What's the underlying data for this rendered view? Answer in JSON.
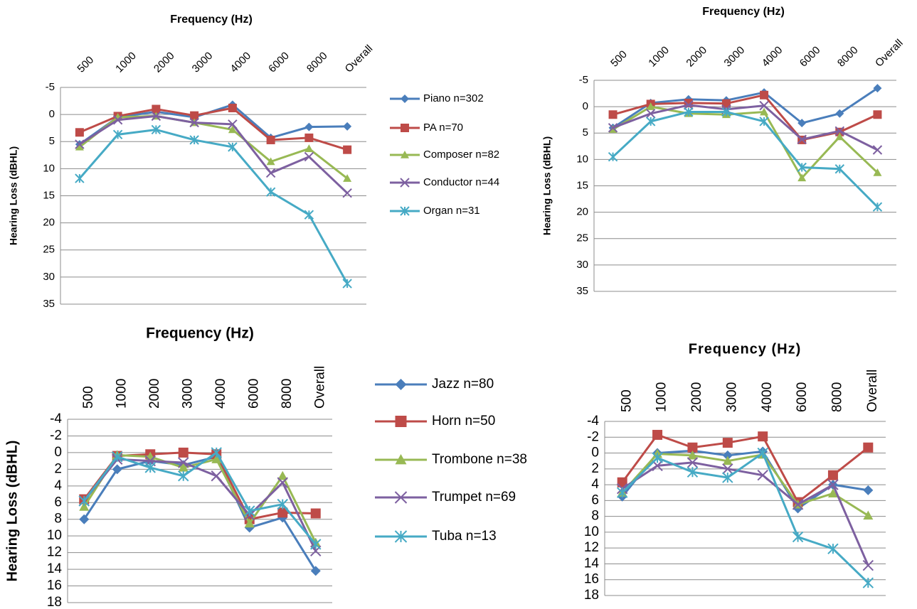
{
  "chart_data": [
    {
      "type": "line",
      "title": "Frequency (Hz)",
      "y_label": "Hearing Loss (dBHL)",
      "categories": [
        "500",
        "1000",
        "2000",
        "3000",
        "4000",
        "6000",
        "8000",
        "Overall"
      ],
      "ylim": [
        -5,
        35
      ],
      "yticks": [
        -5,
        0,
        5,
        10,
        15,
        20,
        25,
        30,
        35
      ],
      "y_inverted": true,
      "grid": true,
      "series": [
        {
          "name": "Piano n=302",
          "color": "#4a7ebb",
          "marker": "diamond",
          "values": [
            5.5,
            0.5,
            -0.5,
            0.5,
            -1.8,
            4.3,
            2.3,
            2.2
          ]
        },
        {
          "name": "PA n=70",
          "color": "#be4b48",
          "marker": "square",
          "values": [
            3.3,
            0.3,
            -1,
            0.2,
            -1.2,
            4.7,
            4.3,
            6.5
          ]
        },
        {
          "name": "Composer n=82",
          "color": "#98b954",
          "marker": "triangle",
          "values": [
            6,
            0.5,
            0.3,
            1.5,
            2.8,
            8.7,
            6.3,
            11.8
          ]
        },
        {
          "name": "Conductor n=44",
          "color": "#7d60a0",
          "marker": "x",
          "values": [
            5.5,
            1,
            0.3,
            1.5,
            1.8,
            10.8,
            7.8,
            14.5
          ]
        },
        {
          "name": "Organ n=31",
          "color": "#46aac5",
          "marker": "asterisk",
          "values": [
            11.8,
            3.7,
            2.8,
            4.7,
            6,
            14.3,
            18.5,
            31.2
          ]
        }
      ]
    },
    {
      "type": "line",
      "title": "Frequency (Hz)",
      "y_label": "Hearing Loss (dBHL)",
      "categories": [
        "500",
        "1000",
        "2000",
        "3000",
        "4000",
        "6000",
        "8000",
        "Overall"
      ],
      "ylim": [
        -5,
        35
      ],
      "yticks": [
        -5,
        0,
        5,
        10,
        15,
        20,
        25,
        30,
        35
      ],
      "y_inverted": true,
      "grid": true,
      "series": [
        {
          "color": "#4a7ebb",
          "marker": "diamond",
          "values": [
            4,
            -0.7,
            -1.4,
            -1.2,
            -2.7,
            3.1,
            1.3,
            -3.5
          ]
        },
        {
          "color": "#be4b48",
          "marker": "square",
          "values": [
            1.5,
            -0.5,
            -0.7,
            -0.6,
            -2.2,
            6.3,
            4.8,
            1.5
          ]
        },
        {
          "color": "#98b954",
          "marker": "triangle",
          "values": [
            4.3,
            0,
            1.3,
            1.5,
            1,
            13.5,
            5.7,
            12.5
          ]
        },
        {
          "color": "#7d60a0",
          "marker": "x",
          "values": [
            4,
            1.3,
            -0.3,
            0.5,
            -0.2,
            6.2,
            4.6,
            8.2
          ]
        },
        {
          "color": "#46aac5",
          "marker": "asterisk",
          "values": [
            9.5,
            2.8,
            1,
            1,
            2.8,
            11.5,
            11.8,
            19
          ]
        }
      ]
    },
    {
      "type": "line",
      "title": "Frequency (Hz)",
      "y_label": "Hearing Loss (dBHL)",
      "categories": [
        "500",
        "1000",
        "2000",
        "3000",
        "4000",
        "6000",
        "8000",
        "Overall"
      ],
      "ylim": [
        -4,
        18
      ],
      "yticks": [
        -4,
        -2,
        0,
        2,
        4,
        6,
        8,
        10,
        12,
        14,
        16,
        18
      ],
      "y_inverted": true,
      "grid": true,
      "series": [
        {
          "name": "Jazz n=80",
          "color": "#4a7ebb",
          "marker": "diamond",
          "values": [
            8,
            2,
            1,
            1.5,
            0.5,
            9,
            7.8,
            14.2
          ]
        },
        {
          "name": "Horn n=50",
          "color": "#be4b48",
          "marker": "square",
          "values": [
            5.6,
            0.4,
            0.2,
            0,
            0.2,
            8,
            7.2,
            7.3
          ]
        },
        {
          "name": "Trombone n=38",
          "color": "#98b954",
          "marker": "triangle",
          "values": [
            6.5,
            0.3,
            0.5,
            1.8,
            0.8,
            8.5,
            2.8,
            10.8
          ]
        },
        {
          "name": "Trumpet n=69",
          "color": "#7d60a0",
          "marker": "x",
          "values": [
            5.8,
            0.8,
            1,
            1.2,
            2.8,
            7.5,
            3.6,
            11.8
          ]
        },
        {
          "name": "Tuba n=13",
          "color": "#46aac5",
          "marker": "asterisk",
          "values": [
            5.8,
            0.5,
            1.8,
            2.8,
            0,
            7,
            6.2,
            11
          ]
        }
      ]
    },
    {
      "type": "line",
      "title": "Frequency (Hz)",
      "categories": [
        "500",
        "1000",
        "2000",
        "3000",
        "4000",
        "6000",
        "8000",
        "Overall"
      ],
      "ylim": [
        -4,
        18
      ],
      "yticks": [
        -4,
        -2,
        0,
        2,
        4,
        6,
        8,
        10,
        12,
        14,
        16,
        18
      ],
      "y_inverted": true,
      "grid": true,
      "series": [
        {
          "color": "#4a7ebb",
          "marker": "diamond",
          "values": [
            5.5,
            0,
            -0.3,
            0.3,
            -0.2,
            7,
            4,
            4.7
          ]
        },
        {
          "color": "#be4b48",
          "marker": "square",
          "values": [
            3.7,
            -2.3,
            -0.7,
            -1.3,
            -2.1,
            6.2,
            2.8,
            -0.7
          ]
        },
        {
          "color": "#98b954",
          "marker": "triangle",
          "values": [
            5,
            0.1,
            0.3,
            1,
            0.2,
            6.5,
            5.1,
            7.9
          ]
        },
        {
          "color": "#7d60a0",
          "marker": "x",
          "values": [
            4.5,
            1.6,
            1.2,
            2,
            2.8,
            6.5,
            4,
            14.2
          ]
        },
        {
          "color": "#46aac5",
          "marker": "asterisk",
          "values": [
            5,
            0.6,
            2.4,
            3.1,
            0,
            10.6,
            12.1,
            16.4
          ]
        }
      ]
    }
  ]
}
